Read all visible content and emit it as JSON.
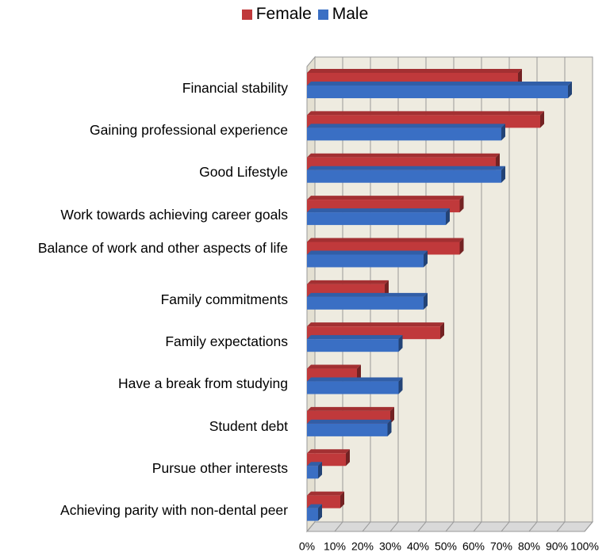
{
  "chart_data": {
    "type": "bar",
    "orientation": "horizontal",
    "categories": [
      "Financial stability",
      "Gaining professional experience",
      "Good Lifestyle",
      "Work towards achieving career goals",
      "Balance of work and other aspects of life",
      "Family commitments",
      "Family expectations",
      "Have a break from studying",
      "Student debt",
      "Pursue other interests",
      "Achieving parity with non-dental peer"
    ],
    "series": [
      {
        "name": "Female",
        "color": "#c0393b",
        "values": [
          76,
          84,
          68,
          55,
          55,
          28,
          48,
          18,
          30,
          14,
          12
        ]
      },
      {
        "name": "Male",
        "color": "#3a6fc4",
        "values": [
          94,
          70,
          70,
          50,
          42,
          42,
          33,
          33,
          29,
          4,
          4
        ]
      }
    ],
    "xlim": [
      0,
      100
    ],
    "xticks": [
      {
        "value": 0,
        "label": "0%"
      },
      {
        "value": 10,
        "label": "10%"
      },
      {
        "value": 20,
        "label": "20%"
      },
      {
        "value": 30,
        "label": "30%"
      },
      {
        "value": 40,
        "label": "40%"
      },
      {
        "value": 50,
        "label": "50%"
      },
      {
        "value": 60,
        "label": "60%"
      },
      {
        "value": 70,
        "label": "70%"
      },
      {
        "value": 80,
        "label": "80%"
      },
      {
        "value": 90,
        "label": "90%"
      },
      {
        "value": 100,
        "label": "100%"
      }
    ],
    "grid": true,
    "legend": "top"
  }
}
